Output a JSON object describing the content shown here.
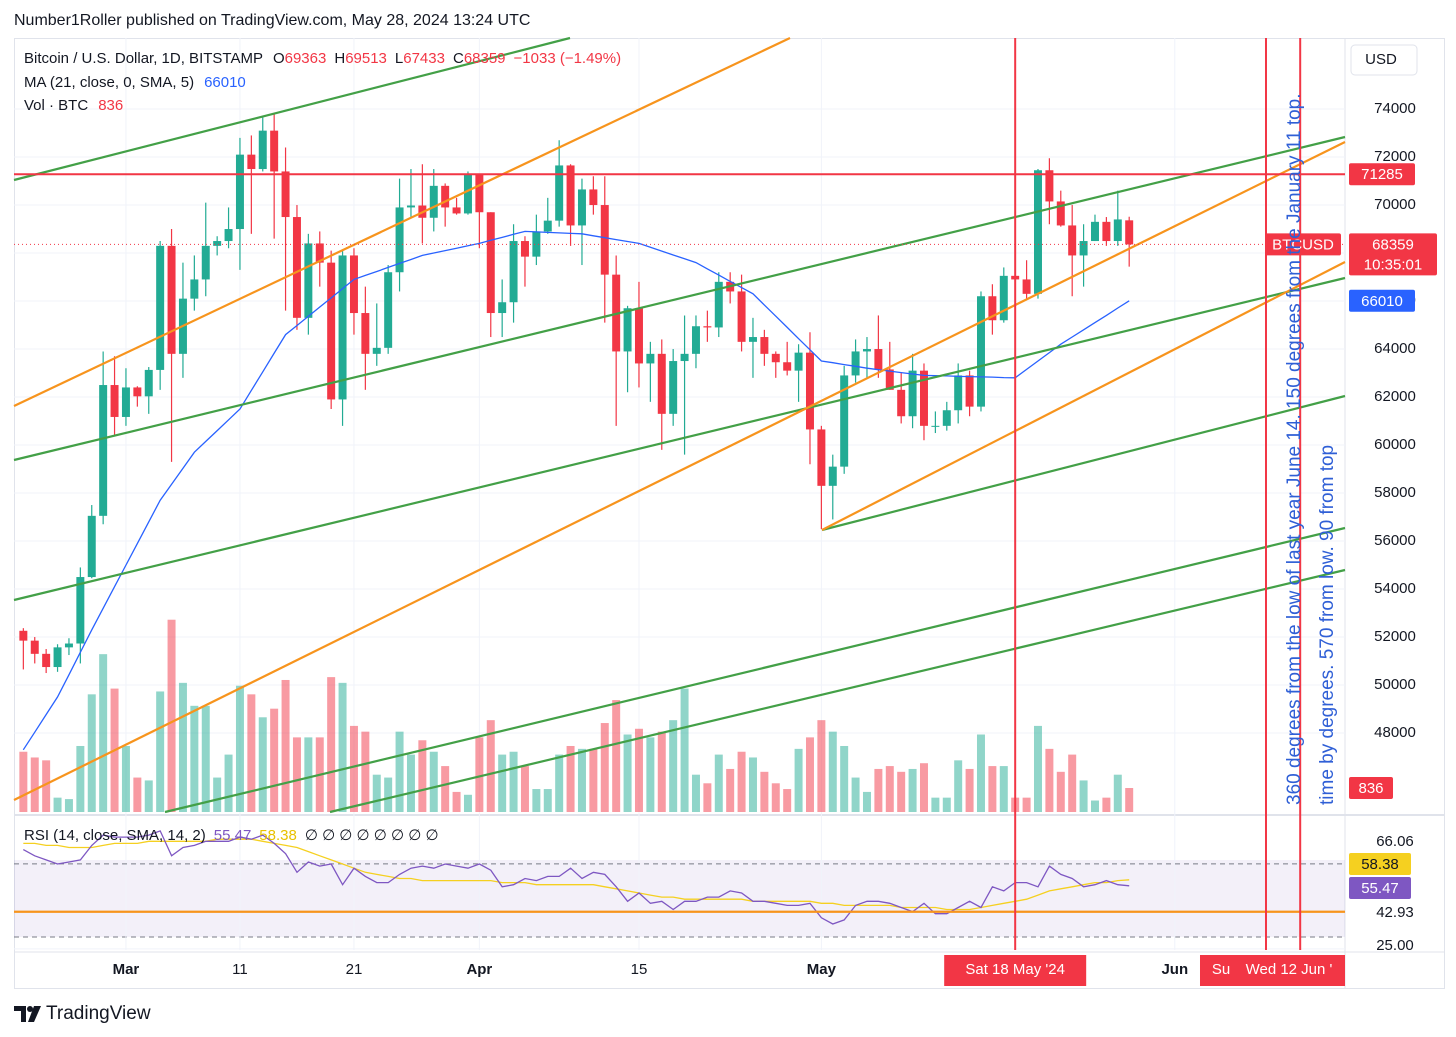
{
  "header": "Number1Roller published on TradingView.com, May 28, 2024 13:24 UTC",
  "footer": "TradingView",
  "annotations": [
    "360 degrees from the low of last year June 14. 150 degrees from the January 11 top.",
    "time by degrees. 570 from low. 90 from top"
  ],
  "chart_data": {
    "type": "candlestick",
    "symbol": "Bitcoin / U.S. Dollar, 1D, BITSTAMP",
    "legend_labels": [
      "O",
      "H",
      "L",
      "C"
    ],
    "change_label": "−1033 (−1.49%)",
    "ma_label": "MA (21, close, 0, SMA, 5)",
    "volume_label": "Vol · BTC",
    "currency": "USD",
    "ticker": "BTCUSD",
    "countdown": "10:35:01",
    "up_color": "#22ab94",
    "down_color": "#f23645",
    "ma_color": "#2962ff",
    "open": [
      52260,
      51850,
      51300,
      50750,
      51570,
      51730,
      54500,
      57050,
      62500,
      61170,
      62400,
      62030,
      63130,
      68300,
      63800,
      66100,
      66900,
      68300,
      68500,
      69000,
      72100,
      71500,
      73100,
      71400,
      69500,
      65300,
      68400,
      67600,
      61900,
      67900,
      65500,
      63800,
      64050,
      67200,
      69900,
      69980,
      69470,
      70800,
      69900,
      69650,
      71300,
      69700,
      65500,
      65950,
      68500,
      67850,
      68900,
      69350,
      71650,
      69150,
      70650,
      70000,
      67100,
      63900,
      65700,
      63400,
      63800,
      61300,
      63500,
      63800,
      64950,
      64900,
      66800,
      66400,
      64300,
      64500,
      63800,
      63450,
      63100,
      63850,
      60650,
      58300,
      59100,
      62900,
      63900,
      64000,
      63150,
      62300,
      61200,
      63100,
      60800,
      60800,
      61450,
      62900,
      61600,
      66200,
      65200,
      67050,
      66900,
      66300,
      71450,
      70150,
      69150,
      67900,
      68500,
      69300,
      68500,
      69363
    ],
    "high": [
      52370,
      52000,
      51500,
      51700,
      51950,
      54900,
      57500,
      63900,
      63700,
      63200,
      62450,
      63250,
      68500,
      69000,
      67600,
      67900,
      70100,
      68700,
      69900,
      72800,
      72900,
      73650,
      73780,
      72400,
      70000,
      68800,
      68900,
      68100,
      68100,
      68200,
      66600,
      65900,
      67500,
      71100,
      71500,
      71700,
      71500,
      70900,
      70300,
      71400,
      71300,
      69700,
      66900,
      69200,
      68700,
      69600,
      70300,
      72700,
      71700,
      71100,
      71200,
      71200,
      67900,
      65800,
      66800,
      64300,
      64400,
      64000,
      65400,
      65400,
      65600,
      67200,
      67200,
      67100,
      65300,
      64800,
      63900,
      64300,
      64200,
      64700,
      60800,
      59600,
      63300,
      64400,
      64500,
      65400,
      64300,
      63000,
      63800,
      63400,
      61400,
      61800,
      63400,
      63100,
      66400,
      66700,
      67400,
      67400,
      67700,
      71500,
      71950,
      70600,
      70000,
      69200,
      69600,
      69500,
      70600,
      69513
    ],
    "low": [
      50650,
      50900,
      50500,
      50550,
      51250,
      50900,
      54450,
      56700,
      60400,
      60800,
      61600,
      61300,
      62300,
      59300,
      62800,
      65600,
      66200,
      67900,
      68200,
      67300,
      68800,
      71400,
      68600,
      65600,
      64800,
      64600,
      66600,
      61500,
      60800,
      64600,
      62300,
      63300,
      63800,
      66400,
      69500,
      68400,
      68900,
      69100,
      69600,
      69600,
      68200,
      64500,
      64500,
      65100,
      66600,
      67500,
      68800,
      69100,
      68300,
      67500,
      69600,
      65100,
      60800,
      62200,
      62400,
      61800,
      59800,
      60800,
      59600,
      63200,
      64300,
      64500,
      65900,
      63900,
      62800,
      63300,
      62800,
      62900,
      61800,
      59200,
      56500,
      56900,
      58800,
      62600,
      62800,
      62800,
      62300,
      60900,
      60700,
      60200,
      60500,
      60600,
      60900,
      61200,
      61400,
      64600,
      65100,
      66700,
      66100,
      66100,
      69200,
      69100,
      66200,
      66600,
      68500,
      68300,
      68300,
      67433
    ],
    "close": [
      51850,
      51300,
      50750,
      51570,
      51730,
      54500,
      57050,
      62500,
      61170,
      62400,
      62030,
      63130,
      68300,
      63800,
      66100,
      66900,
      68300,
      68500,
      69000,
      72100,
      71500,
      73100,
      71400,
      69500,
      65300,
      68400,
      67600,
      61900,
      67900,
      65500,
      63800,
      64050,
      67200,
      69900,
      69980,
      69470,
      70800,
      69900,
      69650,
      71300,
      69700,
      65500,
      65950,
      68500,
      67850,
      68900,
      69350,
      71650,
      69150,
      70650,
      70000,
      67100,
      63900,
      65700,
      63400,
      63800,
      61300,
      63500,
      63800,
      64950,
      64900,
      66800,
      66400,
      64300,
      64500,
      63800,
      63450,
      63100,
      63850,
      60650,
      58300,
      59100,
      62900,
      63900,
      64000,
      63150,
      62300,
      61200,
      63100,
      60800,
      60800,
      61450,
      62900,
      61600,
      66200,
      65200,
      67050,
      66900,
      66300,
      71450,
      70150,
      69150,
      67900,
      68500,
      69300,
      68500,
      69400,
      68359
    ],
    "volume": [
      2100,
      1900,
      1800,
      500,
      450,
      2300,
      4100,
      5500,
      4300,
      2300,
      1200,
      1100,
      4200,
      6700,
      4500,
      3700,
      3700,
      1200,
      2000,
      4400,
      4100,
      3300,
      3600,
      4600,
      2600,
      2600,
      2600,
      4700,
      4500,
      3000,
      2800,
      1300,
      1200,
      2800,
      2000,
      2500,
      2100,
      1600,
      700,
      600,
      2600,
      3200,
      2000,
      2100,
      1600,
      800,
      800,
      2000,
      2300,
      2200,
      2200,
      3100,
      3900,
      2700,
      2900,
      2600,
      2800,
      3200,
      4300,
      1300,
      1000,
      2000,
      1500,
      2100,
      1900,
      1400,
      1000,
      800,
      2200,
      2600,
      3200,
      2800,
      2300,
      1200,
      700,
      1500,
      1600,
      1400,
      1500,
      1700,
      500,
      500,
      1800,
      1500,
      2700,
      1600,
      1600,
      500,
      500,
      3000,
      2200,
      1400,
      2000,
      1100,
      400,
      500,
      1300,
      836
    ],
    "ma": [
      47300,
      48030,
      48770,
      49500,
      50430,
      51370,
      52300,
      53200,
      54100,
      55000,
      55900,
      56800,
      57700,
      58370,
      59030,
      59700,
      60150,
      60600,
      61050,
      61500,
      62280,
      63050,
      63830,
      64600,
      64980,
      65370,
      65750,
      66130,
      66520,
      66900,
      67070,
      67230,
      67400,
      67570,
      67730,
      67900,
      68000,
      68100,
      68200,
      68300,
      68400,
      68530,
      68650,
      68780,
      68900,
      68880,
      68860,
      68840,
      68820,
      68800,
      68720,
      68640,
      68560,
      68480,
      68400,
      68240,
      68080,
      67920,
      67760,
      67600,
      67340,
      67080,
      66820,
      66560,
      66300,
      65830,
      65370,
      64900,
      64430,
      63970,
      63500,
      63430,
      63350,
      63280,
      63200,
      63140,
      63080,
      63020,
      62960,
      62900,
      62890,
      62880,
      62860,
      62850,
      62840,
      62830,
      62810,
      62800,
      63150,
      63500,
      63850,
      64200,
      64500,
      64800,
      65100,
      65400,
      65710,
      66010
    ],
    "ylim": [
      44710,
      76960
    ],
    "yticks": [
      48000,
      50000,
      52000,
      54000,
      56000,
      58000,
      60000,
      62000,
      64000,
      66000,
      68000,
      70000,
      72000,
      74000
    ],
    "volume_ylim": [
      0,
      26970
    ],
    "xlim": [
      -0.82,
      115.93
    ],
    "xticks": [
      {
        "value": 9,
        "label": "Mar"
      },
      {
        "value": 19,
        "label": "11"
      },
      {
        "value": 29,
        "label": "21"
      },
      {
        "value": 40,
        "label": "Apr"
      },
      {
        "value": 54,
        "label": "15"
      },
      {
        "value": 70,
        "label": "May"
      },
      {
        "value": 101,
        "label": "Jun"
      }
    ],
    "hline": 71285,
    "vlines": [
      {
        "value": 87,
        "label": "Sat 18 May '24"
      },
      {
        "value": 109,
        "label": "Su"
      },
      {
        "value": 112,
        "label": "Wed 12 Jun '"
      }
    ],
    "rsi": {
      "label": "RSI (14, close, SMA, 14, 2)",
      "empty": "∅ ∅ ∅ ∅ ∅ ∅ ∅ ∅",
      "color": "#7e57c2",
      "sma_color": "#f5d020",
      "values": [
        73,
        70,
        68,
        66,
        67,
        68,
        75,
        80,
        79,
        79,
        79,
        80,
        82,
        70,
        74,
        75,
        77,
        77,
        77,
        79,
        78,
        80,
        76,
        71,
        62,
        67,
        65,
        66,
        56,
        64,
        60,
        57,
        57,
        61,
        64,
        65,
        64,
        66,
        65,
        64,
        66,
        63,
        55,
        56,
        59,
        58,
        60,
        60,
        64,
        59,
        62,
        61,
        55,
        48,
        52,
        47,
        48,
        44,
        48,
        48,
        50,
        50,
        53,
        52,
        48,
        48,
        47,
        46,
        46,
        47,
        40,
        37,
        39,
        46,
        48,
        48,
        47,
        45,
        43,
        47,
        42,
        42,
        45,
        48,
        45,
        55,
        53,
        57,
        57,
        55,
        65,
        61,
        59,
        55,
        56,
        58,
        56,
        55.47
      ],
      "sma": [
        76,
        76,
        75,
        75,
        74,
        74,
        74,
        75,
        76,
        76,
        76,
        77,
        77,
        77,
        77,
        77,
        77,
        78,
        78,
        78,
        78,
        77,
        76,
        75,
        74,
        72,
        70,
        68,
        66,
        64,
        62,
        61,
        60,
        59,
        59,
        58,
        58,
        58,
        58,
        58,
        58,
        58,
        57,
        57,
        57,
        56,
        56,
        56,
        56,
        56,
        56,
        55,
        54,
        53,
        52,
        51,
        50,
        50,
        49,
        49,
        49,
        49,
        49,
        49,
        48,
        48,
        48,
        48,
        48,
        48,
        47,
        47,
        46,
        46,
        46,
        46,
        46,
        45,
        45,
        45,
        45,
        44,
        44,
        44,
        45,
        46,
        47,
        48,
        49,
        51,
        53,
        54,
        55,
        56,
        57,
        57,
        58,
        58.38
      ],
      "ylim": [
        24.43,
        88.26
      ],
      "yticks": [
        66.06,
        42.93,
        {
          "value": 25,
          "label": "25.00"
        }
      ]
    }
  }
}
